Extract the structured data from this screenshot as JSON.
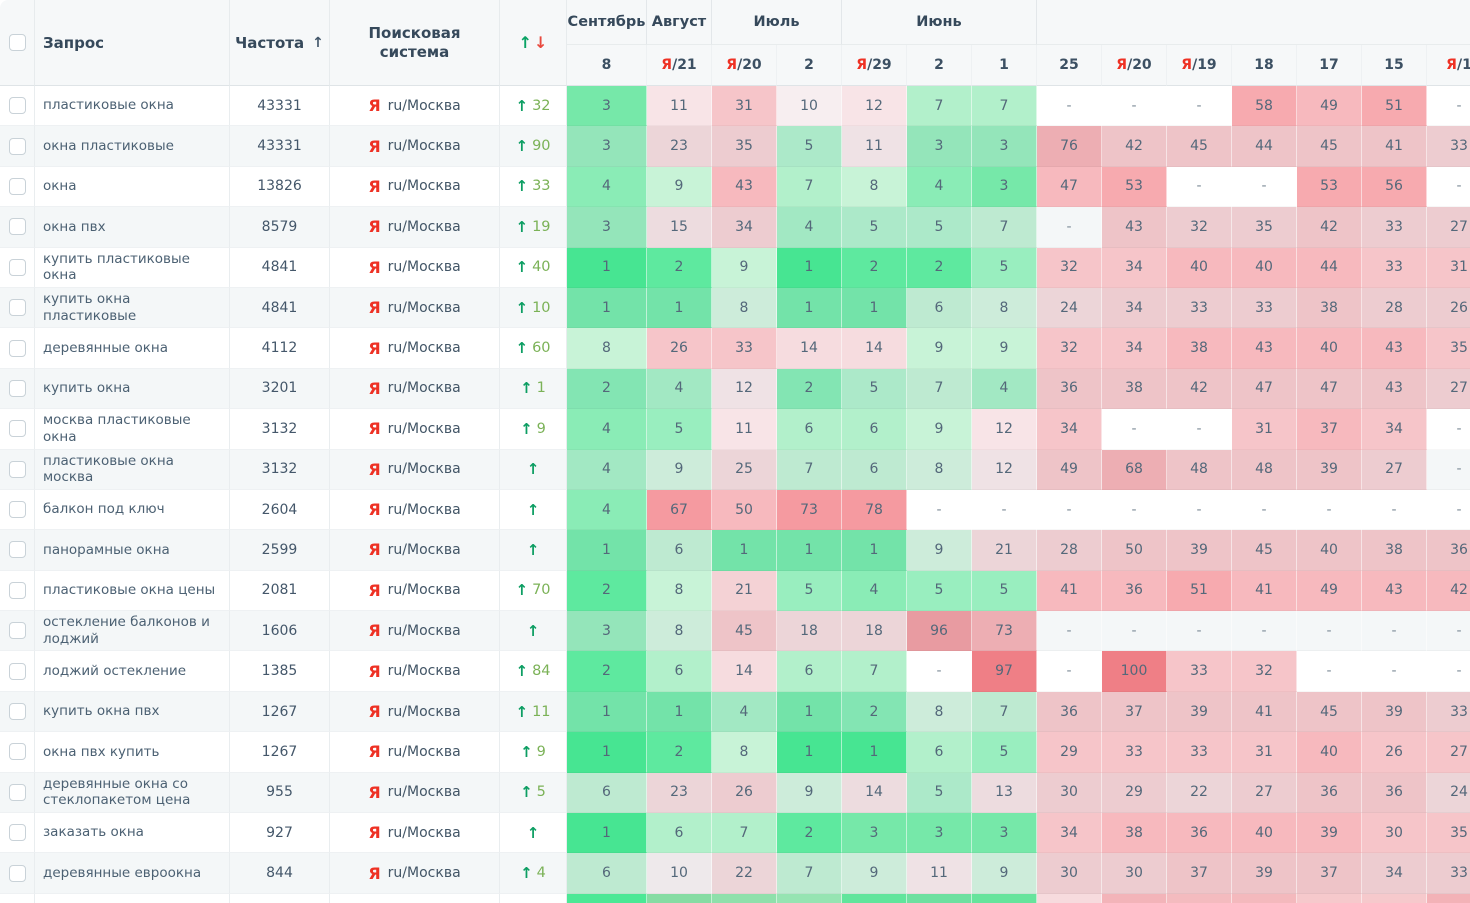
{
  "colors": {
    "yandex_red": "#ee3124",
    "arrow_up_green": "#0d9e63",
    "arrow_down_red": "#e8493e",
    "change_number_green": "#7bb257",
    "header_bg": "#f6f8f9",
    "stripe_bg": "#f4f7f8",
    "position_palette": [
      {
        "max": 1,
        "color": "#47e592"
      },
      {
        "max": 2,
        "color": "#5ee99f"
      },
      {
        "max": 3,
        "color": "#76e8a9"
      },
      {
        "max": 4,
        "color": "#8aecb6"
      },
      {
        "max": 5,
        "color": "#99eebf"
      },
      {
        "max": 7,
        "color": "#b2f0cb"
      },
      {
        "max": 9,
        "color": "#c8f3d7"
      },
      {
        "max": 10,
        "color": "#f7eef0"
      },
      {
        "max": 12,
        "color": "#f8e4e7"
      },
      {
        "max": 15,
        "color": "#f6dcdf"
      },
      {
        "max": 25,
        "color": "#f4d2d5"
      },
      {
        "max": 35,
        "color": "#f6c5c9"
      },
      {
        "max": 50,
        "color": "#f7b9be"
      },
      {
        "max": 60,
        "color": "#f7aaaf"
      },
      {
        "max": 80,
        "color": "#f59aa0"
      },
      {
        "max": 90,
        "color": "#f18c92"
      },
      {
        "max": 100,
        "color": "#ef7f86"
      }
    ]
  },
  "table": {
    "columns": {
      "query": "Запрос",
      "frequency": "Частота",
      "search_engine": "Поисковая\nсистема"
    },
    "frequency_sort_icon": "↑",
    "change_header": {
      "up": "↑",
      "down": "↓"
    },
    "yandex_letter": "Я",
    "month_groups": [
      {
        "label": "Сентябрь",
        "span": 1
      },
      {
        "label": "Август",
        "span": 1
      },
      {
        "label": "Июль",
        "span": 2
      },
      {
        "label": "Июнь",
        "span": 3
      },
      {
        "label": "",
        "span": 7
      }
    ],
    "date_columns": [
      {
        "day": "8",
        "ya": false
      },
      {
        "day": "21",
        "ya": true
      },
      {
        "day": "20",
        "ya": true
      },
      {
        "day": "2",
        "ya": false
      },
      {
        "day": "29",
        "ya": true
      },
      {
        "day": "2",
        "ya": false
      },
      {
        "day": "1",
        "ya": false
      },
      {
        "day": "25",
        "ya": false
      },
      {
        "day": "20",
        "ya": true
      },
      {
        "day": "19",
        "ya": true
      },
      {
        "day": "18",
        "ya": false
      },
      {
        "day": "17",
        "ya": false
      },
      {
        "day": "15",
        "ya": false
      },
      {
        "day": "1",
        "ya": true
      }
    ],
    "rows": [
      {
        "query": "пластиковые окна",
        "frequency": "43331",
        "engine": "ru/Москва",
        "change": "32",
        "positions": [
          "3",
          "11",
          "31",
          "10",
          "12",
          "7",
          "7",
          "-",
          "-",
          "-",
          "58",
          "49",
          "51",
          "-"
        ]
      },
      {
        "query": "окна пластиковые",
        "frequency": "43331",
        "engine": "ru/Москва",
        "change": "90",
        "positions": [
          "3",
          "23",
          "35",
          "5",
          "11",
          "3",
          "3",
          "76",
          "42",
          "45",
          "44",
          "45",
          "41",
          "33"
        ]
      },
      {
        "query": "окна",
        "frequency": "13826",
        "engine": "ru/Москва",
        "change": "33",
        "positions": [
          "4",
          "9",
          "43",
          "7",
          "8",
          "4",
          "3",
          "47",
          "53",
          "-",
          "-",
          "53",
          "56",
          "-"
        ]
      },
      {
        "query": "окна пвх",
        "frequency": "8579",
        "engine": "ru/Москва",
        "change": "19",
        "positions": [
          "3",
          "15",
          "34",
          "4",
          "5",
          "5",
          "7",
          "-",
          "43",
          "32",
          "35",
          "42",
          "33",
          "27"
        ]
      },
      {
        "query": "купить пластиковые окна",
        "frequency": "4841",
        "engine": "ru/Москва",
        "change": "40",
        "positions": [
          "1",
          "2",
          "9",
          "1",
          "2",
          "2",
          "5",
          "32",
          "34",
          "40",
          "40",
          "44",
          "33",
          "31"
        ]
      },
      {
        "query": "купить окна пластиковые",
        "frequency": "4841",
        "engine": "ru/Москва",
        "change": "10",
        "positions": [
          "1",
          "1",
          "8",
          "1",
          "1",
          "6",
          "8",
          "24",
          "34",
          "33",
          "33",
          "38",
          "28",
          "26"
        ]
      },
      {
        "query": "деревянные окна",
        "frequency": "4112",
        "engine": "ru/Москва",
        "change": "60",
        "positions": [
          "8",
          "26",
          "33",
          "14",
          "14",
          "9",
          "9",
          "32",
          "34",
          "38",
          "43",
          "40",
          "43",
          "35"
        ]
      },
      {
        "query": "купить окна",
        "frequency": "3201",
        "engine": "ru/Москва",
        "change": "1",
        "positions": [
          "2",
          "4",
          "12",
          "2",
          "5",
          "7",
          "4",
          "36",
          "38",
          "42",
          "47",
          "47",
          "43",
          "27"
        ]
      },
      {
        "query": "москва пластиковые окна",
        "frequency": "3132",
        "engine": "ru/Москва",
        "change": "9",
        "positions": [
          "4",
          "5",
          "11",
          "6",
          "6",
          "9",
          "12",
          "34",
          "-",
          "-",
          "31",
          "37",
          "34",
          "-"
        ]
      },
      {
        "query": "пластиковые окна москва",
        "frequency": "3132",
        "engine": "ru/Москва",
        "change": "",
        "positions": [
          "4",
          "9",
          "25",
          "7",
          "6",
          "8",
          "12",
          "49",
          "68",
          "48",
          "48",
          "39",
          "27",
          "-"
        ]
      },
      {
        "query": "балкон под ключ",
        "frequency": "2604",
        "engine": "ru/Москва",
        "change": "",
        "positions": [
          "4",
          "67",
          "50",
          "73",
          "78",
          "-",
          "-",
          "-",
          "-",
          "-",
          "-",
          "-",
          "-",
          "-"
        ]
      },
      {
        "query": "панорамные окна",
        "frequency": "2599",
        "engine": "ru/Москва",
        "change": "",
        "positions": [
          "1",
          "6",
          "1",
          "1",
          "1",
          "9",
          "21",
          "28",
          "50",
          "39",
          "45",
          "40",
          "38",
          "36"
        ]
      },
      {
        "query": "пластиковые окна цены",
        "frequency": "2081",
        "engine": "ru/Москва",
        "change": "70",
        "positions": [
          "2",
          "8",
          "21",
          "5",
          "4",
          "5",
          "5",
          "41",
          "36",
          "51",
          "41",
          "49",
          "43",
          "42"
        ]
      },
      {
        "query": "остекление балконов и лоджий",
        "frequency": "1606",
        "engine": "ru/Москва",
        "change": "",
        "positions": [
          "3",
          "8",
          "45",
          "18",
          "18",
          "96",
          "73",
          "-",
          "-",
          "-",
          "-",
          "-",
          "-",
          "-"
        ]
      },
      {
        "query": "лоджий остекление",
        "frequency": "1385",
        "engine": "ru/Москва",
        "change": "84",
        "positions": [
          "2",
          "6",
          "14",
          "6",
          "7",
          "-",
          "97",
          "-",
          "100",
          "33",
          "32",
          "-",
          "-",
          "-"
        ]
      },
      {
        "query": "купить окна пвх",
        "frequency": "1267",
        "engine": "ru/Москва",
        "change": "11",
        "positions": [
          "1",
          "1",
          "4",
          "1",
          "2",
          "8",
          "7",
          "36",
          "37",
          "39",
          "41",
          "45",
          "39",
          "33"
        ]
      },
      {
        "query": "окна пвх купить",
        "frequency": "1267",
        "engine": "ru/Москва",
        "change": "9",
        "positions": [
          "1",
          "2",
          "8",
          "1",
          "1",
          "6",
          "5",
          "29",
          "33",
          "33",
          "31",
          "40",
          "26",
          "27"
        ]
      },
      {
        "query": "деревянные окна со стеклопакетом цена",
        "frequency": "955",
        "engine": "ru/Москва",
        "change": "5",
        "positions": [
          "6",
          "23",
          "26",
          "9",
          "14",
          "5",
          "13",
          "30",
          "29",
          "22",
          "27",
          "36",
          "36",
          "24"
        ]
      },
      {
        "query": "заказать окна",
        "frequency": "927",
        "engine": "ru/Москва",
        "change": "",
        "positions": [
          "1",
          "6",
          "7",
          "2",
          "3",
          "3",
          "3",
          "34",
          "38",
          "36",
          "40",
          "39",
          "30",
          "35"
        ]
      },
      {
        "query": "деревянные евроокна",
        "frequency": "844",
        "engine": "ru/Москва",
        "change": "4",
        "positions": [
          "6",
          "10",
          "22",
          "7",
          "9",
          "11",
          "9",
          "30",
          "30",
          "37",
          "39",
          "37",
          "34",
          "33"
        ]
      }
    ],
    "partial_row_colors": [
      "#4be895",
      "#86dca3",
      "#8fe0ab",
      "#96e4b2",
      "#61e59c",
      "#6ee0a0",
      "#66e49c",
      "#f7dbde",
      "#f3b4b9",
      "#f4bbbf",
      "#f4b9bd",
      "#f6c9cc",
      "#f6c9cc",
      "#f3b2b7"
    ]
  }
}
